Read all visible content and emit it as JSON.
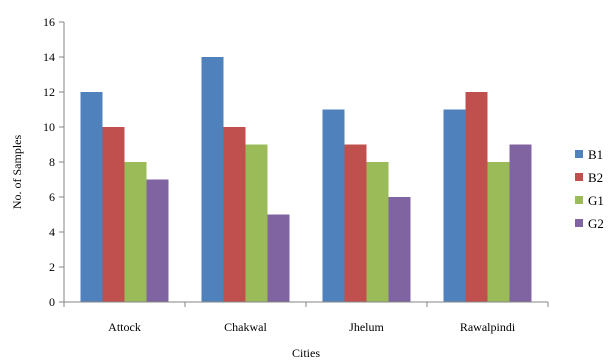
{
  "chart_data": {
    "type": "bar",
    "title": "",
    "xlabel": "Cities",
    "ylabel": "No. of Samples",
    "categories": [
      "Attock",
      "Chakwal",
      "Jhelum",
      "Rawalpindi"
    ],
    "ylim": [
      0,
      16
    ],
    "yticks": [
      "0",
      "2",
      "4",
      "6",
      "8",
      "10",
      "12",
      "14",
      "16"
    ],
    "grid": false,
    "legend_position": "right",
    "series": [
      {
        "name": "B1",
        "color": "#4F81BD",
        "values": [
          12,
          14,
          11,
          11
        ]
      },
      {
        "name": "B2",
        "color": "#C0504D",
        "values": [
          10,
          10,
          9,
          12
        ]
      },
      {
        "name": "G1",
        "color": "#9BBB59",
        "values": [
          8,
          9,
          8,
          8
        ]
      },
      {
        "name": "G2",
        "color": "#8064A2",
        "values": [
          7,
          5,
          6,
          9
        ]
      }
    ]
  }
}
